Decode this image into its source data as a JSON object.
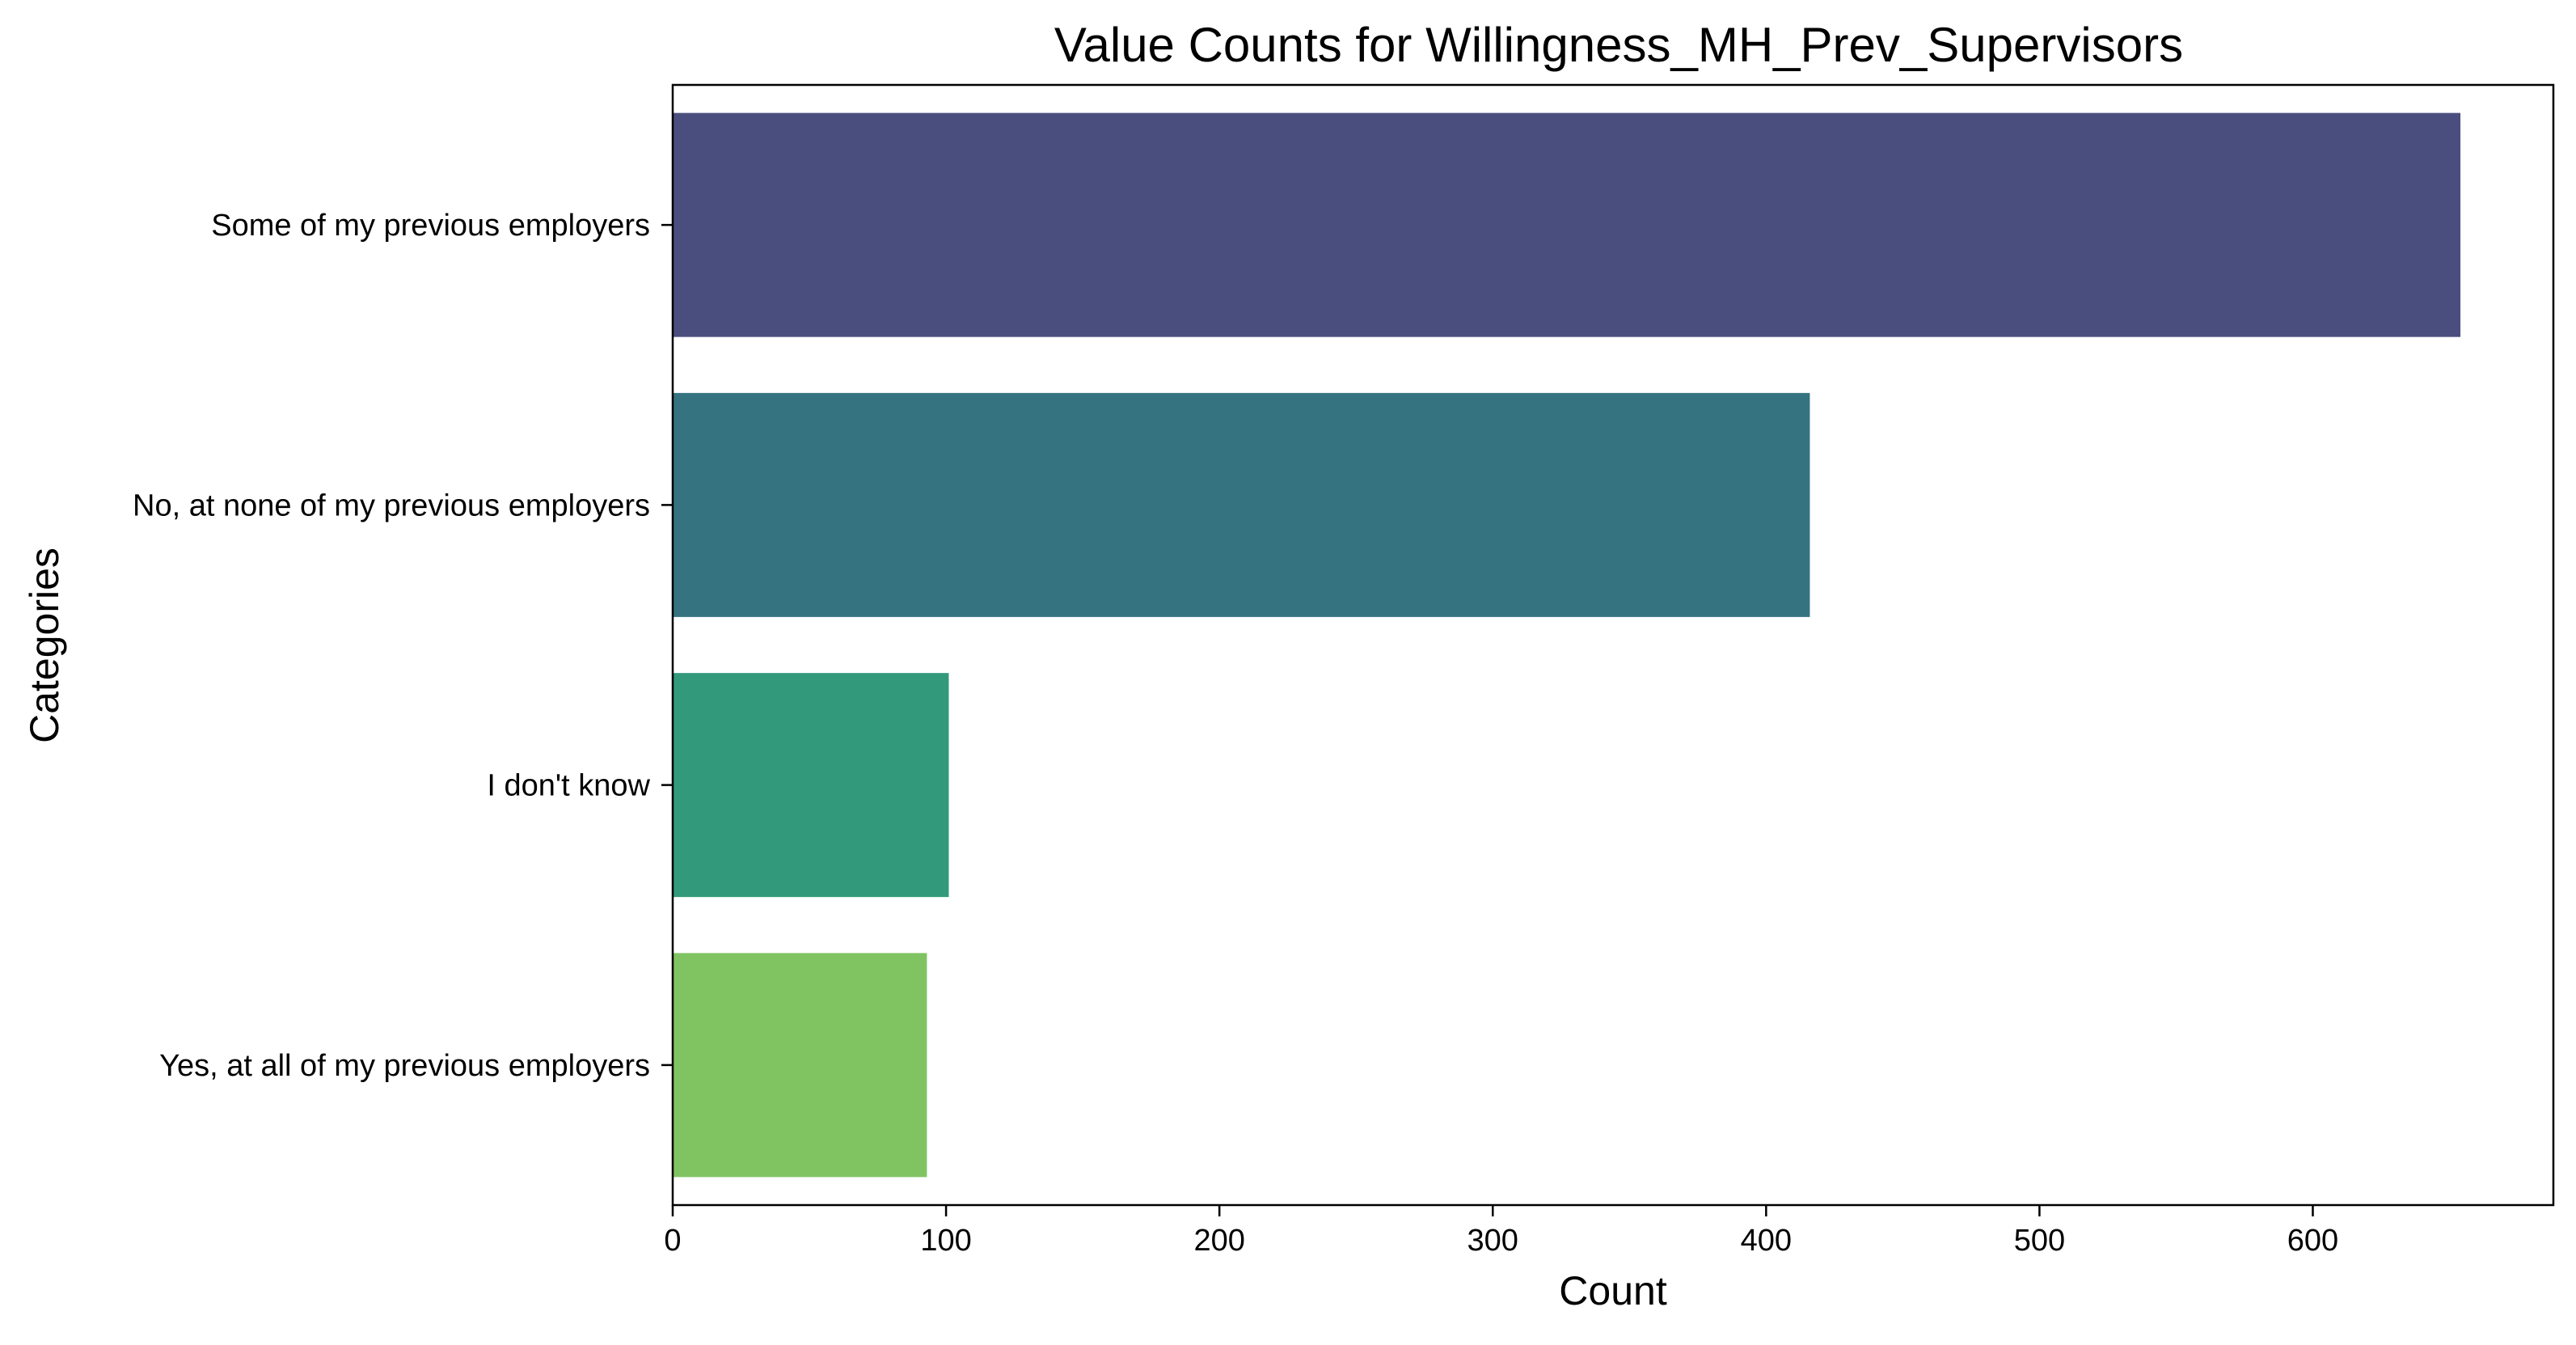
{
  "chart_data": {
    "type": "bar",
    "orientation": "horizontal",
    "title": "Value Counts for Willingness_MH_Prev_Supervisors",
    "xlabel": "Count",
    "ylabel": "Categories",
    "categories": [
      "Some of my previous employers",
      "No, at none of my previous employers",
      "I don't know",
      "Yes, at all of my previous employers"
    ],
    "values": [
      654,
      416,
      101,
      93
    ],
    "colors": [
      "#4a4e7e",
      "#357380",
      "#33997b",
      "#80c462"
    ],
    "xlim": [
      0,
      688
    ],
    "xticks": [
      0,
      100,
      200,
      300,
      400,
      500,
      600
    ],
    "grid": false,
    "legend": "none"
  }
}
